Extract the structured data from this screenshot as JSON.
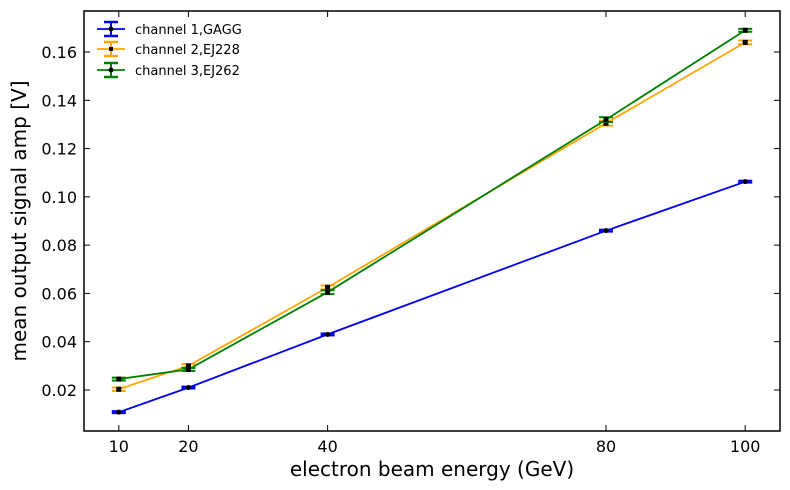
{
  "chart_data": {
    "type": "line",
    "title": "",
    "xlabel": "electron beam energy (GeV)",
    "ylabel": "mean output signal amp [V]",
    "x": [
      10,
      20,
      40,
      80,
      100
    ],
    "xlim": [
      5,
      105
    ],
    "ylim": [
      0.003,
      0.177
    ],
    "xticks": [
      10,
      20,
      40,
      80,
      100
    ],
    "yticks": [
      0.02,
      0.04,
      0.06,
      0.08,
      0.1,
      0.12,
      0.14,
      0.16
    ],
    "ytick_labels": [
      "0.02",
      "0.04",
      "0.06",
      "0.08",
      "0.10",
      "0.12",
      "0.14",
      "0.16"
    ],
    "grid": false,
    "legend_position": "top-left",
    "series": [
      {
        "name": "channel 1,GAGG",
        "color": "#0000ee",
        "marker": "circle",
        "values": [
          0.0108,
          0.021,
          0.043,
          0.086,
          0.1063
        ],
        "errors": [
          0.0004,
          0.0004,
          0.0004,
          0.0004,
          0.0004
        ]
      },
      {
        "name": "channel 2,EJ228",
        "color": "#ffa500",
        "marker": "square",
        "values": [
          0.0203,
          0.03,
          0.0625,
          0.1305,
          0.164
        ],
        "errors": [
          0.0007,
          0.0007,
          0.0008,
          0.001,
          0.0008
        ]
      },
      {
        "name": "channel 3,EJ262",
        "color": "#008000",
        "marker": "square",
        "values": [
          0.0245,
          0.0285,
          0.0605,
          0.132,
          0.169
        ],
        "errors": [
          0.0006,
          0.0006,
          0.0008,
          0.001,
          0.0006
        ]
      }
    ]
  }
}
